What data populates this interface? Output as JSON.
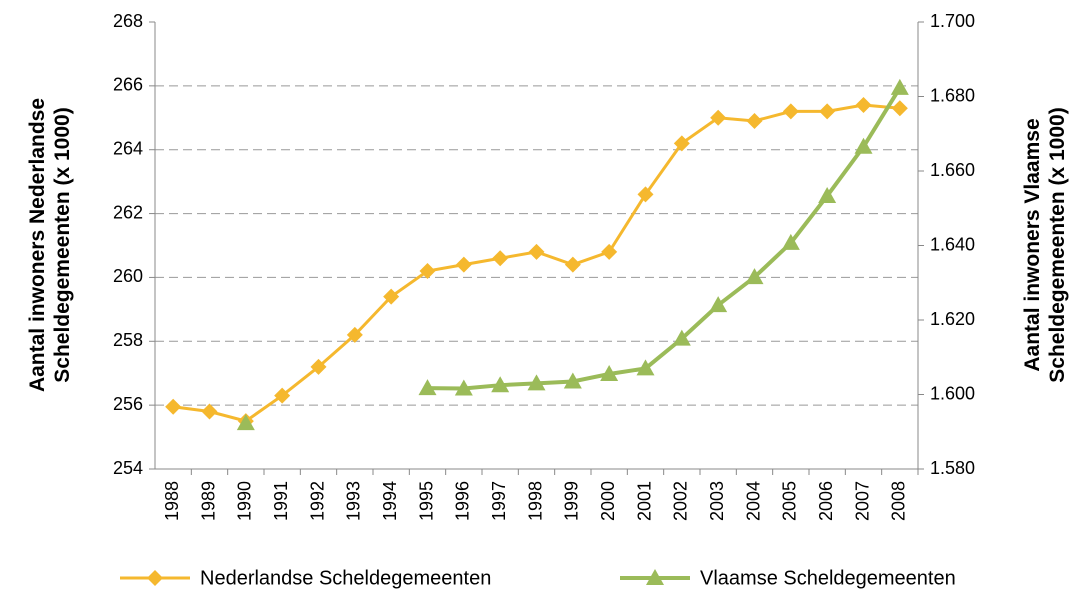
{
  "chart_data": {
    "type": "line",
    "y_label": "Aantal inwoners Nederlandse Scheldegemeenten (x 1000)",
    "y2_label": "Aantal inwoners Vlaamse Scheldegemeenten (x 1000)",
    "categories": [
      "1988",
      "1989",
      "1990",
      "1991",
      "1992",
      "1993",
      "1994",
      "1995",
      "1996",
      "1997",
      "1998",
      "1999",
      "2000",
      "2001",
      "2002",
      "2003",
      "2004",
      "2005",
      "2006",
      "2007",
      "2008"
    ],
    "series": [
      {
        "name": "Nederlandse Scheldegemeenten",
        "color": "#f5b82e",
        "marker": "diamond",
        "values": [
          255.95,
          255.8,
          255.5,
          256.3,
          257.2,
          258.2,
          259.4,
          260.2,
          260.4,
          260.6,
          260.8,
          260.4,
          260.8,
          262.6,
          264.2,
          265.0,
          264.9,
          265.2,
          265.2,
          265.4,
          265.3
        ]
      },
      {
        "name": "Vlaamse Scheldegemeenten",
        "color": "#9bbb59",
        "marker": "triangle",
        "axis": "y2",
        "values": [
          null,
          null,
          1592.3,
          null,
          null,
          null,
          null,
          1601.7,
          1601.6,
          1602.5,
          1603,
          1603.5,
          1605.5,
          1607,
          1615,
          1624,
          1631.5,
          1640.7,
          1653.3,
          1666.5,
          1682.3
        ]
      }
    ],
    "ylim": [
      254,
      268
    ],
    "yticks": [
      254,
      256,
      258,
      260,
      262,
      264,
      266,
      268
    ],
    "y2lim": [
      1580,
      1700
    ],
    "y2ticks": [
      {
        "value": 1580,
        "label": "1.580"
      },
      {
        "value": 1600,
        "label": "1.600"
      },
      {
        "value": 1620,
        "label": "1.620"
      },
      {
        "value": 1640,
        "label": "1.640"
      },
      {
        "value": 1660,
        "label": "1.660"
      },
      {
        "value": 1680,
        "label": "1.680"
      },
      {
        "value": 1700,
        "label": "1.700"
      }
    ],
    "grid": true,
    "legend": "bottom"
  }
}
